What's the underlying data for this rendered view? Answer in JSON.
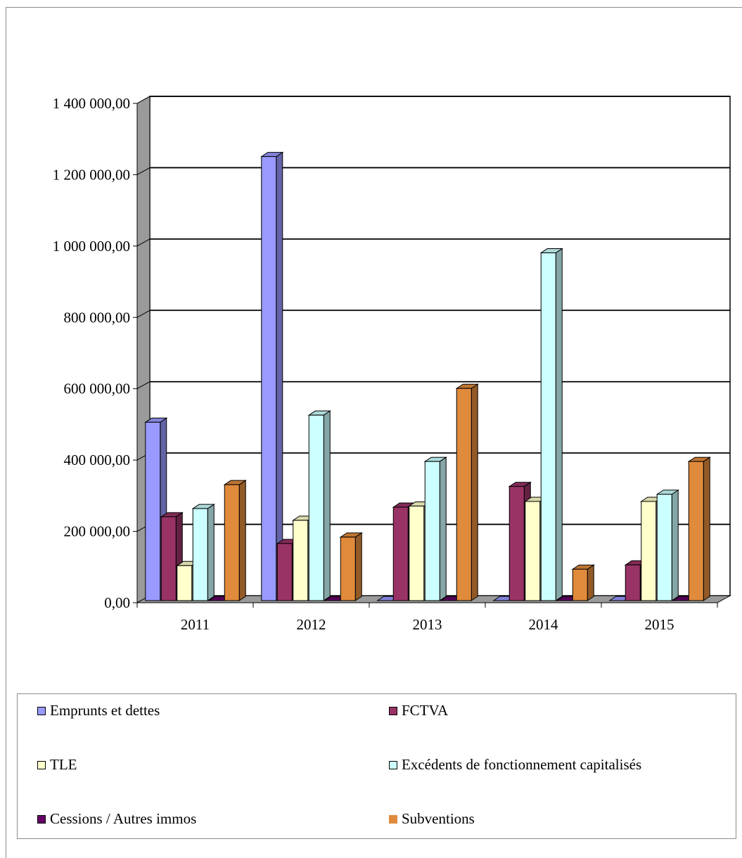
{
  "chart_data": {
    "type": "bar",
    "style": "3d-clustered-column",
    "categories": [
      "2011",
      "2012",
      "2013",
      "2014",
      "2015"
    ],
    "ylim": [
      0,
      1400000
    ],
    "yticks": [
      {
        "value": 0,
        "label": "0,00"
      },
      {
        "value": 200000,
        "label": "200 000,00"
      },
      {
        "value": 400000,
        "label": "400 000,00"
      },
      {
        "value": 600000,
        "label": "600 000,00"
      },
      {
        "value": 800000,
        "label": "800 000,00"
      },
      {
        "value": 1000000,
        "label": "1 000 000,00"
      },
      {
        "value": 1200000,
        "label": "1 200 000,00"
      },
      {
        "value": 1400000,
        "label": "1 400 000,00"
      }
    ],
    "grid": true,
    "legend_position": "bottom",
    "series": [
      {
        "name": "Emprunts et dettes",
        "color": "#9999FF",
        "values": [
          500000,
          1245000,
          0,
          0,
          0
        ]
      },
      {
        "name": "FCTVA",
        "color": "#993366",
        "values": [
          235000,
          160000,
          262000,
          320000,
          100000
        ]
      },
      {
        "name": "TLE",
        "color": "#FFFFCC",
        "values": [
          98000,
          225000,
          265000,
          278000,
          278000
        ]
      },
      {
        "name": "Excédents de fonctionnement capitalisés",
        "color": "#CCFFFF",
        "values": [
          258000,
          520000,
          390000,
          975000,
          298000
        ]
      },
      {
        "name": "Cessions / Autres immos",
        "color": "#660066",
        "values": [
          0,
          0,
          0,
          0,
          0
        ]
      },
      {
        "name": "Subventions",
        "color": "#E08A3C",
        "values": [
          325000,
          178000,
          595000,
          88000,
          390000
        ]
      }
    ]
  }
}
